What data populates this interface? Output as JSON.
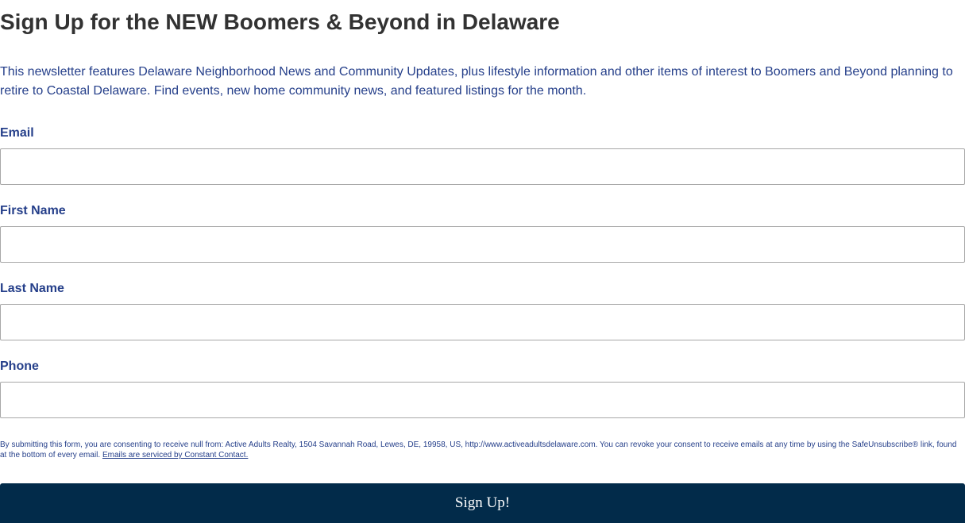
{
  "form": {
    "title": "Sign Up for the NEW Boomers & Beyond in Delaware",
    "description": "This newsletter features Delaware Neighborhood News and Community Updates, plus lifestyle information and other items of interest to Boomers and Beyond planning to retire to Coastal Delaware. Find events, new home community news, and featured listings for the month.",
    "fields": [
      {
        "label": "Email",
        "value": ""
      },
      {
        "label": "First Name",
        "value": ""
      },
      {
        "label": "Last Name",
        "value": ""
      },
      {
        "label": "Phone",
        "value": ""
      }
    ],
    "disclaimer_text": "By submitting this form, you are consenting to receive null from: Active Adults Realty, 1504 Savannah Road, Lewes, DE, 19958, US, http://www.activeadultsdelaware.com. You can revoke your consent to receive emails at any time by using the SafeUnsubscribe® link, found at the bottom of every email.",
    "disclaimer_link": "Emails are serviced by Constant Contact.",
    "submit_label": "Sign Up!"
  },
  "colors": {
    "title_text": "#323232",
    "body_text": "#253f8a",
    "button_bg": "#022b4a",
    "button_text": "#ffffff",
    "input_border": "#a8a8a8"
  }
}
